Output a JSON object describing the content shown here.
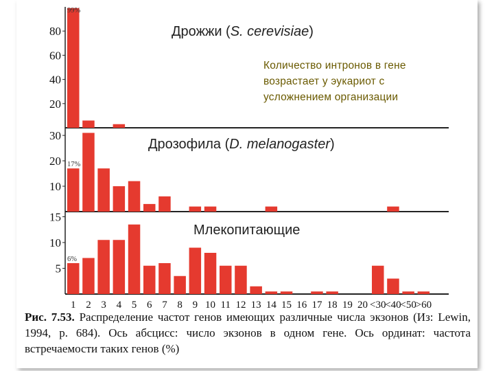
{
  "chart_data": {
    "type": "bar",
    "x_tick_labels": [
      "1",
      "2",
      "3",
      "4",
      "5",
      "6",
      "7",
      "8",
      "9",
      "10",
      "11",
      "12",
      "13",
      "14",
      "15",
      "16",
      "17",
      "18",
      "19",
      "20",
      "<30",
      "<40",
      "<50",
      ">60"
    ],
    "bar_color": "#e53a2f",
    "panels": [
      {
        "title": "Дрожжи (S. cerevisiae)",
        "title_plain": "Дрожжи (",
        "title_italic": "S. cerevisiae",
        "title_close": ")",
        "y_ticks": [
          "80",
          "60",
          "40",
          "20"
        ],
        "y_tick_values": [
          80,
          60,
          40,
          20
        ],
        "ylim": [
          0,
          100
        ],
        "values": [
          99,
          6,
          0,
          3,
          0,
          0,
          0,
          0,
          0,
          0,
          0,
          0,
          0,
          0,
          0,
          0,
          0,
          0,
          0,
          0,
          0,
          0,
          0,
          0
        ],
        "bar_label": "99%",
        "bar_label_index": 0
      },
      {
        "title": "Дрозофила (D. melanogaster)",
        "title_plain": "Дрозофила (",
        "title_italic": "D. melanogaster",
        "title_close": ")",
        "y_ticks": [
          "30",
          "20",
          "10"
        ],
        "y_tick_values": [
          30,
          20,
          10
        ],
        "ylim": [
          0,
          33
        ],
        "values": [
          17,
          31,
          17,
          10,
          12,
          3,
          6,
          0,
          2,
          2,
          0,
          0,
          0,
          2,
          0,
          0,
          0,
          0,
          0,
          0,
          0,
          2,
          0,
          0
        ],
        "bar_label": "17%",
        "bar_label_index": 0
      },
      {
        "title": "Млекопитающие",
        "title_plain": "Млекопитающие",
        "title_italic": "",
        "title_close": "",
        "y_ticks": [
          "15",
          "10",
          "5"
        ],
        "y_tick_values": [
          15,
          10,
          5
        ],
        "ylim": [
          0,
          16
        ],
        "values": [
          6,
          7,
          10.5,
          10.5,
          13.5,
          5.5,
          6,
          3.5,
          9,
          8,
          5.5,
          5.5,
          1.5,
          0.5,
          0.5,
          0,
          0.5,
          0.5,
          0,
          0,
          5.5,
          3,
          0.5,
          0.5
        ],
        "bar_label": "6%",
        "bar_label_index": 0
      }
    ]
  },
  "annotation": {
    "lines": [
      "Количество интронов в гене",
      "возрастает у эукариот с",
      "усложнением организации"
    ]
  },
  "caption": {
    "figure_label": "Рис. 7.53.",
    "text": "Распределение частот генов имеющих различные числа экзонов (Из: Lewin, 1994, p. 684). Ось абсцисс: число экзонов в одном гене. Ось ординат: частота встречаемости таких генов (%)"
  }
}
